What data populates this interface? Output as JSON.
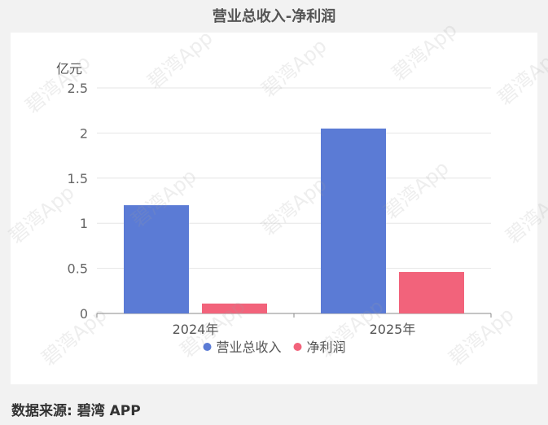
{
  "chart_data": {
    "type": "bar",
    "title": "营业总收入-净利润",
    "ylabel": "亿元",
    "xlabel": "",
    "categories": [
      "2024年",
      "2025年"
    ],
    "series": [
      {
        "name": "营业总收入",
        "color": "#5b7bd5",
        "values": [
          1.2,
          2.05
        ]
      },
      {
        "name": "净利润",
        "color": "#f2637b",
        "values": [
          0.11,
          0.46
        ]
      }
    ],
    "ylim": [
      0,
      2.5
    ],
    "yticks": [
      "0",
      "0.5",
      "1",
      "1.5",
      "2",
      "2.5"
    ],
    "grid": true,
    "legend": "bottom"
  },
  "source": "数据来源: 碧湾 APP",
  "watermark": "碧湾App"
}
